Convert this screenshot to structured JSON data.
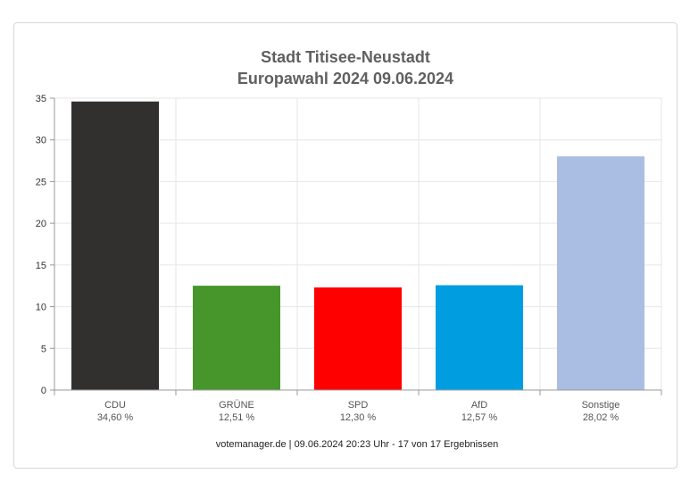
{
  "chart_data": {
    "type": "bar",
    "title": "Stadt Titisee-Neustadt",
    "subtitle": "Europawahl 2024 09.06.2024",
    "categories": [
      "CDU",
      "GRÜNE",
      "SPD",
      "AfD",
      "Sonstige"
    ],
    "values": [
      34.6,
      12.51,
      12.3,
      12.57,
      28.02
    ],
    "value_labels": [
      "34,60 %",
      "12,51 %",
      "12,30 %",
      "12,57 %",
      "28,02 %"
    ],
    "colors": [
      "#32302e",
      "#46962b",
      "#ff0000",
      "#009ee0",
      "#aabde3"
    ],
    "ylim": [
      0,
      35
    ],
    "yticks": [
      0,
      5,
      10,
      15,
      20,
      25,
      30,
      35
    ],
    "grid": true,
    "xlabel": "",
    "ylabel": ""
  },
  "footer": "votemanager.de | 09.06.2024 20:23 Uhr - 17 von 17 Ergebnissen"
}
